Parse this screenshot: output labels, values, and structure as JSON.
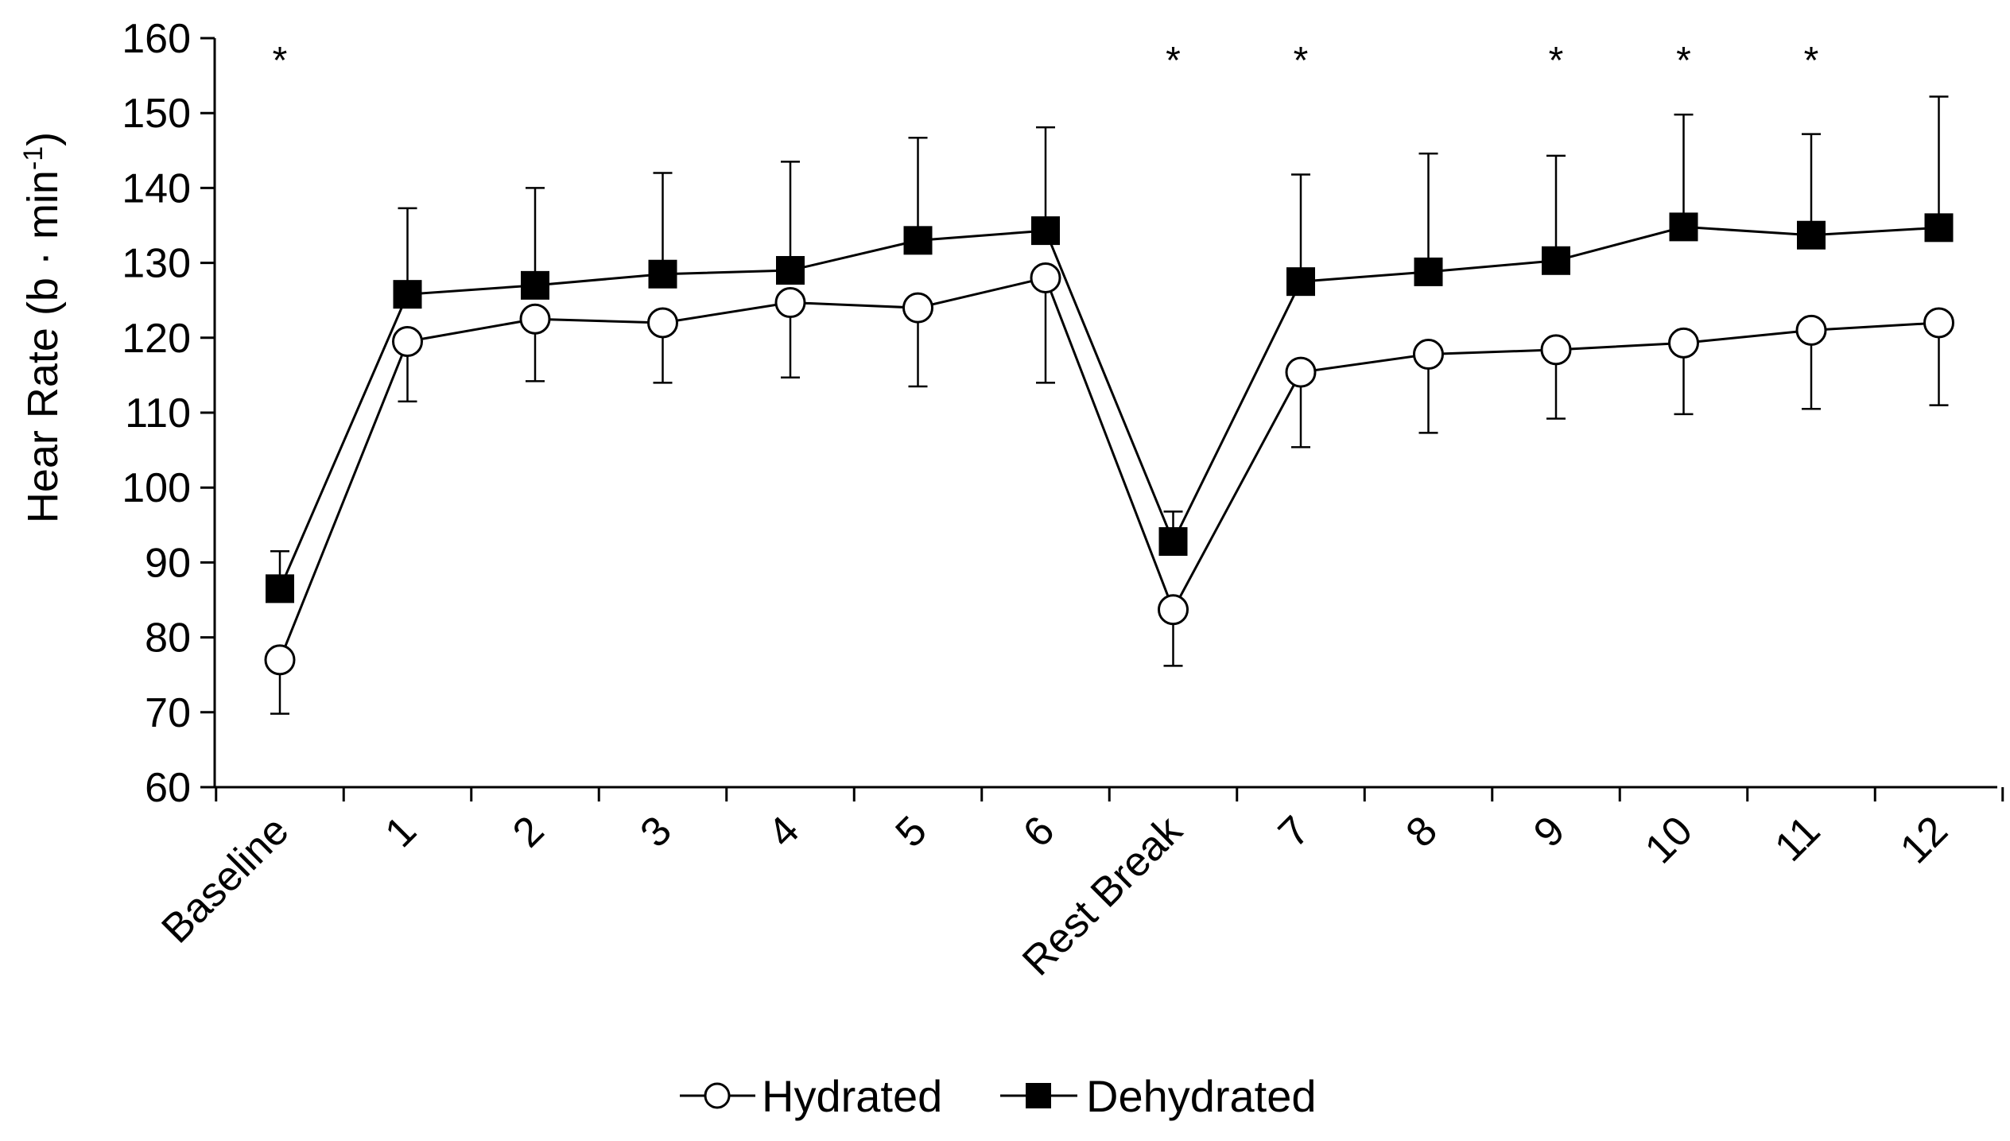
{
  "chart_data": {
    "type": "line",
    "title": "",
    "xlabel": "",
    "ylabel": "Hear Rate (b · min",
    "ylabel_superscript": "-1",
    "ylabel_suffix": ")",
    "ylim": [
      60,
      160
    ],
    "yticks": [
      60,
      70,
      80,
      90,
      100,
      110,
      120,
      130,
      140,
      150,
      160
    ],
    "categories": [
      "Baseline",
      "1",
      "2",
      "3",
      "4",
      "5",
      "6",
      "Rest Break",
      "7",
      "8",
      "9",
      "10",
      "11",
      "12"
    ],
    "grid": false,
    "legend_position": "bottom-center",
    "series": [
      {
        "name": "Hydrated",
        "marker": "circle-open",
        "values": [
          77,
          119.5,
          122.5,
          122,
          124.7,
          124,
          128,
          83.7,
          115.4,
          117.8,
          118.4,
          119.3,
          121,
          122
        ],
        "error_low": [
          7.2,
          8,
          8.3,
          8,
          10,
          10.5,
          14,
          7.5,
          10,
          10.5,
          9.2,
          9.5,
          10.5,
          11
        ],
        "error_high": [
          0,
          0,
          0,
          0,
          0,
          0,
          0,
          0,
          0,
          0,
          0,
          0,
          0,
          0
        ]
      },
      {
        "name": "Dehydrated",
        "marker": "square-filled",
        "values": [
          86.5,
          125.8,
          127,
          128.5,
          129,
          133,
          134.3,
          92.8,
          127.5,
          128.8,
          130.3,
          134.8,
          133.7,
          134.7
        ],
        "error_low": [
          0,
          0,
          0,
          0,
          0,
          0,
          0,
          0,
          0,
          0,
          0,
          0,
          0,
          0
        ],
        "error_high": [
          5,
          11.5,
          13,
          13.5,
          14.5,
          13.7,
          13.8,
          4,
          14.3,
          15.8,
          14,
          15,
          13.5,
          17.5
        ]
      }
    ],
    "significance_markers": [
      {
        "category": "Baseline",
        "label": "*"
      },
      {
        "category": "Rest Break",
        "label": "*"
      },
      {
        "category": "7",
        "label": "*"
      },
      {
        "category": "9",
        "label": "*"
      },
      {
        "category": "10",
        "label": "*"
      },
      {
        "category": "11",
        "label": "*"
      }
    ],
    "colors": {
      "line": "#000000",
      "hydrated_fill": "#ffffff",
      "dehydrated_fill": "#000000"
    }
  },
  "legend": {
    "hydrated_label": "Hydrated",
    "dehydrated_label": "Dehydrated"
  }
}
